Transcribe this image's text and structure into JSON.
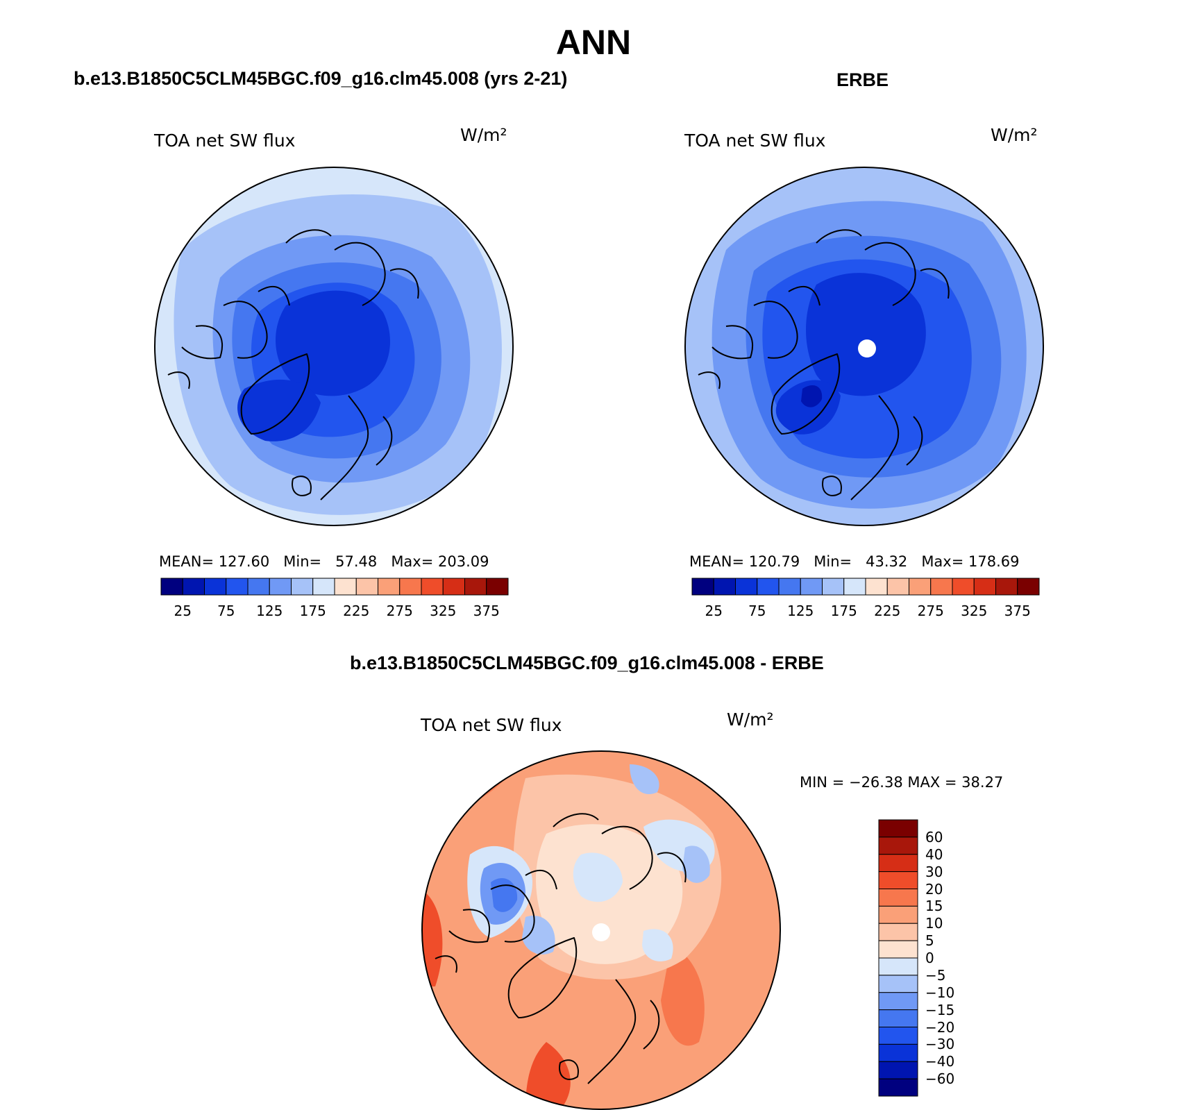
{
  "figure": {
    "title": "ANN"
  },
  "panel_model": {
    "subtitle": "b.e13.B1850C5CLM45BGC.f09_g16.clm45.008 (yrs 2-21)",
    "variable": "TOA net SW flux",
    "units": "W/m²",
    "stats": {
      "mean_label": "MEAN=",
      "mean": "127.60",
      "min_label": "Min=",
      "min": "57.48",
      "max_label": "Max=",
      "max": "203.09"
    }
  },
  "panel_obs": {
    "subtitle": "ERBE",
    "variable": "TOA net SW flux",
    "units": "W/m²",
    "stats": {
      "mean_label": "MEAN=",
      "mean": "120.79",
      "min_label": "Min=",
      "min": "43.32",
      "max_label": "Max=",
      "max": "178.69"
    }
  },
  "panel_diff": {
    "subtitle": "b.e13.B1850C5CLM45BGC.f09_g16.clm45.008 - ERBE",
    "variable": "TOA net SW flux",
    "units": "W/m²",
    "minmax_text": "MIN = −26.38 MAX =   38.27"
  },
  "colorbar_abs": {
    "tick_labels": [
      "25",
      "75",
      "125",
      "175",
      "225",
      "275",
      "325",
      "375"
    ],
    "colors": [
      "#00007f",
      "#0015b0",
      "#0a33d8",
      "#2255ee",
      "#4577f0",
      "#7099f5",
      "#a6c2f8",
      "#d6e6fa",
      "#fde2d0",
      "#fcc4a8",
      "#faa078",
      "#f7774d",
      "#ef4d2a",
      "#d62e16",
      "#a8170b",
      "#7a0000"
    ]
  },
  "colorbar_diff": {
    "tick_labels": [
      "60",
      "40",
      "30",
      "20",
      "15",
      "10",
      "5",
      "0",
      "−5",
      "−10",
      "−15",
      "−20",
      "−30",
      "−40",
      "−60"
    ],
    "colors": [
      "#7a0000",
      "#a8170b",
      "#d62e16",
      "#ef4d2a",
      "#f7774d",
      "#faa078",
      "#fcc4a8",
      "#fde2d0",
      "#d6e6fa",
      "#a6c2f8",
      "#7099f5",
      "#4577f0",
      "#2255ee",
      "#0a33d8",
      "#0015b0",
      "#00007f"
    ]
  }
}
